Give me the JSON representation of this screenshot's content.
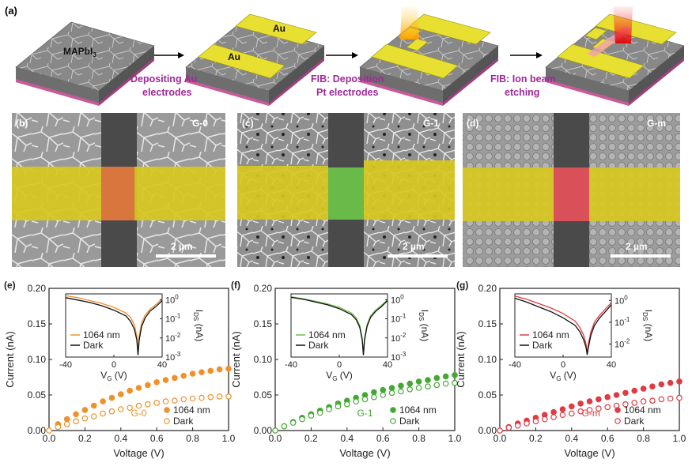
{
  "figure": {
    "panel_a": {
      "label": "(a)",
      "material_label": "MAPbI",
      "material_sub": "3",
      "au_label_1": "Au",
      "au_label_2": "Au",
      "step1": [
        "Depositing Au",
        "electrodes"
      ],
      "step2": [
        "FIB: Deposition",
        "Pt electrodes"
      ],
      "step3": [
        "FIB: Ion beam",
        "etching"
      ],
      "step_color": "#a0289a"
    },
    "sem_panels": [
      {
        "label": "(b)",
        "tag": "G-0",
        "scale": "2 µm",
        "channel_color": "#e0783c"
      },
      {
        "label": "(c)",
        "tag": "G-1",
        "scale": "2 µm",
        "channel_color": "#6cc04a"
      },
      {
        "label": "(d)",
        "tag": "G-m",
        "scale": "2 µm",
        "channel_color": "#e0505a"
      }
    ],
    "electrode_color": "#d8c820"
  },
  "chart_data": [
    {
      "panel": "(e)",
      "type": "scatter",
      "xlabel": "Voltage (V)",
      "ylabel": "Current (nA)",
      "xlim": [
        0,
        1.0
      ],
      "ylim": [
        0,
        0.2
      ],
      "xticks": [
        "0.0",
        "0.2",
        "0.4",
        "0.6",
        "0.8",
        "1.0"
      ],
      "yticks": [
        "0.00",
        "0.05",
        "0.10",
        "0.15",
        "0.20"
      ],
      "tag": "G-0",
      "color": "#f0902a",
      "series": [
        {
          "name": "1064 nm",
          "filled": true,
          "x": [
            0,
            0.05,
            0.1,
            0.15,
            0.2,
            0.25,
            0.3,
            0.35,
            0.4,
            0.45,
            0.5,
            0.55,
            0.6,
            0.65,
            0.7,
            0.75,
            0.8,
            0.85,
            0.9,
            0.95,
            1.0
          ],
          "values": [
            0,
            0.009,
            0.016,
            0.023,
            0.029,
            0.035,
            0.041,
            0.046,
            0.051,
            0.056,
            0.06,
            0.064,
            0.068,
            0.071,
            0.074,
            0.077,
            0.08,
            0.082,
            0.084,
            0.086,
            0.087
          ]
        },
        {
          "name": "Dark",
          "filled": false,
          "x": [
            0,
            0.05,
            0.1,
            0.15,
            0.2,
            0.25,
            0.3,
            0.35,
            0.4,
            0.45,
            0.5,
            0.55,
            0.6,
            0.65,
            0.7,
            0.75,
            0.8,
            0.85,
            0.9,
            0.95,
            1.0
          ],
          "values": [
            0,
            0.005,
            0.009,
            0.013,
            0.017,
            0.02,
            0.024,
            0.027,
            0.03,
            0.032,
            0.035,
            0.037,
            0.039,
            0.041,
            0.042,
            0.044,
            0.045,
            0.046,
            0.047,
            0.048,
            0.048
          ]
        }
      ],
      "inset": {
        "xlabel": "V",
        "xlabel_sub": "G",
        "xlabel_unit": " (V)",
        "ylabel": "I",
        "ylabel_sub": "DS",
        "ylabel_unit": " (nA)",
        "xlim": [
          -40,
          40
        ],
        "xticks": [
          "-40",
          "0",
          "40"
        ],
        "ylog": [
          -3,
          0.3
        ],
        "yticks": [
          {
            "base": "10",
            "exp": "0",
            "v": 0
          },
          {
            "base": "10",
            "exp": "-1",
            "v": -1
          },
          {
            "base": "10",
            "exp": "-2",
            "v": -2
          },
          {
            "base": "10",
            "exp": "-3",
            "v": -3
          }
        ],
        "series": [
          {
            "name": "1064 nm",
            "color": "#f0902a",
            "x": [
              -40,
              -30,
              -20,
              -10,
              0,
              10,
              14,
              17,
              19,
              20,
              21,
              23,
              26,
              30,
              35,
              40
            ],
            "logy": [
              0.2,
              0.1,
              -0.05,
              -0.2,
              -0.4,
              -0.7,
              -0.95,
              -1.3,
              -1.9,
              -2.7,
              -1.9,
              -1.2,
              -0.8,
              -0.5,
              -0.25,
              0.05
            ]
          },
          {
            "name": "Dark",
            "color": "#111111",
            "x": [
              -40,
              -30,
              -20,
              -10,
              0,
              10,
              14,
              17,
              19,
              20,
              21,
              23,
              26,
              30,
              35,
              40
            ],
            "logy": [
              0.1,
              -0.02,
              -0.15,
              -0.32,
              -0.55,
              -0.85,
              -1.15,
              -1.55,
              -2.1,
              -2.9,
              -2.1,
              -1.4,
              -0.95,
              -0.6,
              -0.35,
              -0.05
            ]
          }
        ]
      }
    },
    {
      "panel": "(f)",
      "type": "scatter",
      "xlabel": "Voltage (V)",
      "ylabel": "Current (nA)",
      "xlim": [
        0,
        1.0
      ],
      "ylim": [
        0,
        0.2
      ],
      "xticks": [
        "0.0",
        "0.2",
        "0.4",
        "0.6",
        "0.8",
        "1.0"
      ],
      "yticks": [
        "0.00",
        "0.05",
        "0.10",
        "0.15",
        "0.20"
      ],
      "tag": "G-1",
      "color": "#44a832",
      "series": [
        {
          "name": "1064 nm",
          "filled": true,
          "x": [
            0,
            0.05,
            0.1,
            0.15,
            0.2,
            0.25,
            0.3,
            0.35,
            0.4,
            0.45,
            0.5,
            0.55,
            0.6,
            0.65,
            0.7,
            0.75,
            0.8,
            0.85,
            0.9,
            0.95,
            1.0
          ],
          "values": [
            0,
            0.006,
            0.012,
            0.018,
            0.023,
            0.028,
            0.033,
            0.038,
            0.042,
            0.046,
            0.05,
            0.054,
            0.057,
            0.06,
            0.063,
            0.066,
            0.069,
            0.071,
            0.074,
            0.076,
            0.078
          ]
        },
        {
          "name": "Dark",
          "filled": false,
          "x": [
            0,
            0.05,
            0.1,
            0.15,
            0.2,
            0.25,
            0.3,
            0.35,
            0.4,
            0.45,
            0.5,
            0.55,
            0.6,
            0.65,
            0.7,
            0.75,
            0.8,
            0.85,
            0.9,
            0.95,
            1.0
          ],
          "values": [
            0,
            0.006,
            0.011,
            0.016,
            0.021,
            0.025,
            0.03,
            0.034,
            0.037,
            0.041,
            0.044,
            0.047,
            0.05,
            0.053,
            0.055,
            0.058,
            0.06,
            0.062,
            0.064,
            0.066,
            0.067
          ]
        }
      ],
      "inset": {
        "xlabel": "V",
        "xlabel_sub": "G",
        "xlabel_unit": " (V)",
        "ylabel": "I",
        "ylabel_sub": "DS",
        "ylabel_unit": " (nA)",
        "xlim": [
          -40,
          40
        ],
        "xticks": [
          "-40",
          "0",
          "40"
        ],
        "ylog": [
          -3,
          0.3
        ],
        "yticks": [
          {
            "base": "10",
            "exp": "0",
            "v": 0
          },
          {
            "base": "10",
            "exp": "-1",
            "v": -1
          },
          {
            "base": "10",
            "exp": "-2",
            "v": -2
          },
          {
            "base": "10",
            "exp": "-3",
            "v": -3
          }
        ],
        "series": [
          {
            "name": "1064 nm",
            "color": "#6cc04a",
            "x": [
              -40,
              -30,
              -20,
              -10,
              0,
              10,
              14,
              17,
              19,
              20,
              21,
              23,
              26,
              30,
              35,
              40
            ],
            "logy": [
              0.15,
              0.05,
              -0.08,
              -0.22,
              -0.4,
              -0.7,
              -0.95,
              -1.35,
              -2.0,
              -2.8,
              -2.0,
              -1.3,
              -0.85,
              -0.55,
              -0.3,
              0.0
            ]
          },
          {
            "name": "Dark",
            "color": "#111111",
            "x": [
              -40,
              -30,
              -20,
              -10,
              0,
              10,
              14,
              17,
              19,
              20,
              21,
              23,
              26,
              30,
              35,
              40
            ],
            "logy": [
              0.12,
              0.02,
              -0.12,
              -0.27,
              -0.47,
              -0.78,
              -1.05,
              -1.45,
              -2.1,
              -2.9,
              -2.1,
              -1.4,
              -0.92,
              -0.62,
              -0.36,
              -0.05
            ]
          }
        ]
      }
    },
    {
      "panel": "(g)",
      "type": "scatter",
      "xlabel": "Voltage (V)",
      "ylabel": "Current (nA)",
      "xlim": [
        0,
        1.0
      ],
      "ylim": [
        0,
        0.2
      ],
      "xticks": [
        "0.0",
        "0.2",
        "0.4",
        "0.6",
        "0.8",
        "1.0"
      ],
      "yticks": [
        "0.00",
        "0.05",
        "0.10",
        "0.15",
        "0.20"
      ],
      "tag": "G-m",
      "color": "#e03a44",
      "series": [
        {
          "name": "1064 nm",
          "filled": true,
          "x": [
            0,
            0.05,
            0.1,
            0.15,
            0.2,
            0.25,
            0.3,
            0.35,
            0.4,
            0.45,
            0.5,
            0.55,
            0.6,
            0.65,
            0.7,
            0.75,
            0.8,
            0.85,
            0.9,
            0.95,
            1.0
          ],
          "values": [
            0,
            0.005,
            0.01,
            0.014,
            0.018,
            0.022,
            0.026,
            0.03,
            0.034,
            0.038,
            0.041,
            0.044,
            0.047,
            0.05,
            0.053,
            0.056,
            0.059,
            0.062,
            0.065,
            0.067,
            0.069
          ]
        },
        {
          "name": "Dark",
          "filled": false,
          "x": [
            0,
            0.05,
            0.1,
            0.15,
            0.2,
            0.25,
            0.3,
            0.35,
            0.4,
            0.45,
            0.5,
            0.55,
            0.6,
            0.65,
            0.7,
            0.75,
            0.8,
            0.85,
            0.9,
            0.95,
            1.0
          ],
          "values": [
            0,
            0.004,
            0.007,
            0.01,
            0.013,
            0.016,
            0.019,
            0.022,
            0.024,
            0.027,
            0.029,
            0.031,
            0.033,
            0.035,
            0.037,
            0.039,
            0.041,
            0.042,
            0.044,
            0.045,
            0.046
          ]
        }
      ],
      "inset": {
        "xlabel": "V",
        "xlabel_sub": "G",
        "xlabel_unit": " (V)",
        "ylabel": "I",
        "ylabel_sub": "DS",
        "ylabel_unit": " (nA)",
        "xlim": [
          -40,
          40
        ],
        "xticks": [
          "-40",
          "0",
          "40"
        ],
        "ylog": [
          -2.6,
          0.3
        ],
        "yticks": [
          {
            "base": "10",
            "exp": "0",
            "v": 0
          },
          {
            "base": "10",
            "exp": "-1",
            "v": -1
          },
          {
            "base": "10",
            "exp": "-2",
            "v": -2
          }
        ],
        "series": [
          {
            "name": "1064 nm",
            "color": "#e03a44",
            "x": [
              -40,
              -30,
              -20,
              -10,
              0,
              10,
              14,
              17,
              19,
              20,
              21,
              23,
              26,
              30,
              35,
              40
            ],
            "logy": [
              0.2,
              0.05,
              -0.15,
              -0.35,
              -0.6,
              -0.95,
              -1.25,
              -1.6,
              -2.0,
              -2.45,
              -2.0,
              -1.45,
              -1.0,
              -0.7,
              -0.4,
              -0.1
            ]
          },
          {
            "name": "Dark",
            "color": "#111111",
            "x": [
              -40,
              -30,
              -20,
              -10,
              0,
              10,
              14,
              17,
              19,
              20,
              21,
              23,
              26,
              30,
              35,
              40
            ],
            "logy": [
              0.1,
              -0.08,
              -0.3,
              -0.52,
              -0.8,
              -1.15,
              -1.45,
              -1.8,
              -2.15,
              -2.5,
              -2.15,
              -1.6,
              -1.15,
              -0.82,
              -0.52,
              -0.2
            ]
          }
        ]
      }
    }
  ]
}
